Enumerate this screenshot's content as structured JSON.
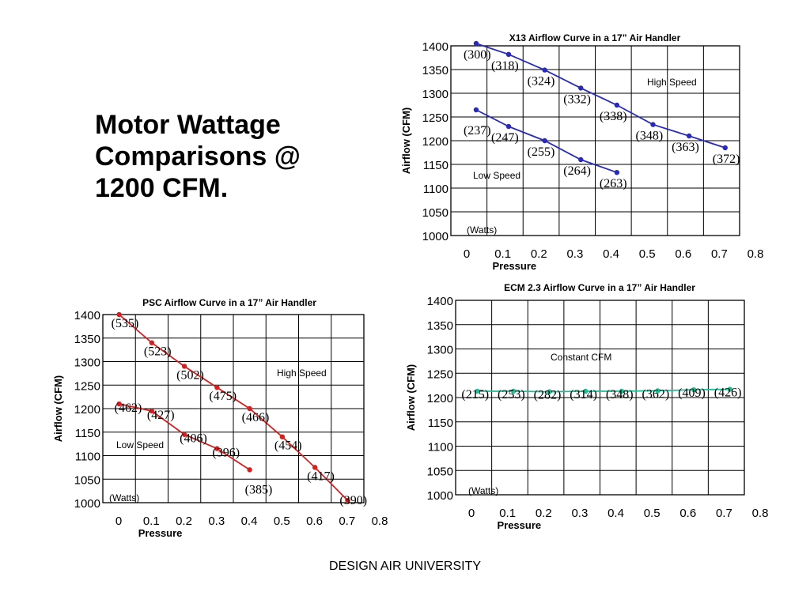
{
  "slide": {
    "title_lines": [
      "Motor Wattage",
      "Comparisons @",
      "1200 CFM."
    ],
    "footer": "DESIGN AIR UNIVERSITY"
  },
  "chart_data": [
    {
      "id": "x13",
      "type": "line",
      "title": "X13 Airflow Curve in a 17” Air Handler",
      "xlabel": "Pressure",
      "ylabel": "Airflow (CFM)",
      "xlim": [
        0,
        0.8
      ],
      "ylim": [
        1000,
        1400
      ],
      "xticks": [
        "0",
        "0.1",
        "0.2",
        "0.3",
        "0.4",
        "0.5",
        "0.6",
        "0.7",
        "0.8"
      ],
      "yticks": [
        "1000",
        "1050",
        "1100",
        "1150",
        "1200",
        "1250",
        "1300",
        "1350",
        "1400"
      ],
      "grid": true,
      "color": "#2a2ab8",
      "unit_note": "(Watts)",
      "series": [
        {
          "name": "High Speed",
          "x": [
            0.07,
            0.16,
            0.26,
            0.36,
            0.46,
            0.56,
            0.66,
            0.76
          ],
          "y": [
            1405,
            1382,
            1349,
            1311,
            1275,
            1234,
            1210,
            1185
          ],
          "point_labels": [
            "(300)",
            "(318)",
            "(324)",
            "(332)",
            "(338)",
            "(348)",
            "(363)",
            "(372)"
          ]
        },
        {
          "name": "Low Speed",
          "x": [
            0.07,
            0.16,
            0.26,
            0.36,
            0.46
          ],
          "y": [
            1265,
            1230,
            1200,
            1160,
            1133
          ],
          "point_labels": [
            "(237)",
            "(247)",
            "(255)",
            "(264)",
            "(263)"
          ]
        }
      ]
    },
    {
      "id": "psc",
      "type": "line",
      "title": "PSC Airflow Curve in a 17” Air Handler",
      "xlabel": "Pressure",
      "ylabel": "Airflow (CFM)",
      "xlim": [
        0,
        0.8
      ],
      "ylim": [
        1000,
        1400
      ],
      "xticks": [
        "0",
        "0.1",
        "0.2",
        "0.3",
        "0.4",
        "0.5",
        "0.6",
        "0.7",
        "0.8"
      ],
      "yticks": [
        "1000",
        "1050",
        "1100",
        "1150",
        "1200",
        "1250",
        "1300",
        "1350",
        "1400"
      ],
      "grid": true,
      "color": "#d42020",
      "unit_note": "(Watts)",
      "series": [
        {
          "name": "High Speed",
          "x": [
            0.05,
            0.15,
            0.25,
            0.35,
            0.45,
            0.55,
            0.65,
            0.75
          ],
          "y": [
            1400,
            1340,
            1290,
            1245,
            1200,
            1140,
            1075,
            1005
          ],
          "point_labels": [
            "(535)",
            "(523)",
            "(502)",
            "(475)",
            "(466)",
            "(454)",
            "(417)",
            "(390)"
          ]
        },
        {
          "name": "Low Speed",
          "x": [
            0.05,
            0.15,
            0.25,
            0.35,
            0.45
          ],
          "y": [
            1210,
            1195,
            1145,
            1115,
            1070
          ],
          "point_labels": [
            "(462)",
            "(427)",
            "(406)",
            "(396)",
            "(385)"
          ]
        }
      ]
    },
    {
      "id": "ecm",
      "type": "line",
      "title": "ECM 2.3 Airflow Curve in a 17” Air Handler",
      "xlabel": "Pressure",
      "ylabel": "Airflow (CFM)",
      "xlim": [
        0,
        0.8
      ],
      "ylim": [
        1000,
        1400
      ],
      "xticks": [
        "0",
        "0.1",
        "0.2",
        "0.3",
        "0.4",
        "0.5",
        "0.6",
        "0.7",
        "0.8"
      ],
      "yticks": [
        "1000",
        "1050",
        "1100",
        "1150",
        "1200",
        "1250",
        "1300",
        "1350",
        "1400"
      ],
      "grid": true,
      "color": "#1fbf95",
      "unit_note": "(Watts)",
      "series": [
        {
          "name": "Constant CFM",
          "x": [
            0.06,
            0.16,
            0.26,
            0.36,
            0.46,
            0.56,
            0.66,
            0.76
          ],
          "y": [
            1213,
            1213,
            1212,
            1213,
            1213,
            1214,
            1216,
            1217
          ],
          "point_labels": [
            "(215)",
            "(253)",
            "(282)",
            "(314)",
            "(348)",
            "(362)",
            "(409)",
            "(426)"
          ]
        }
      ]
    }
  ]
}
